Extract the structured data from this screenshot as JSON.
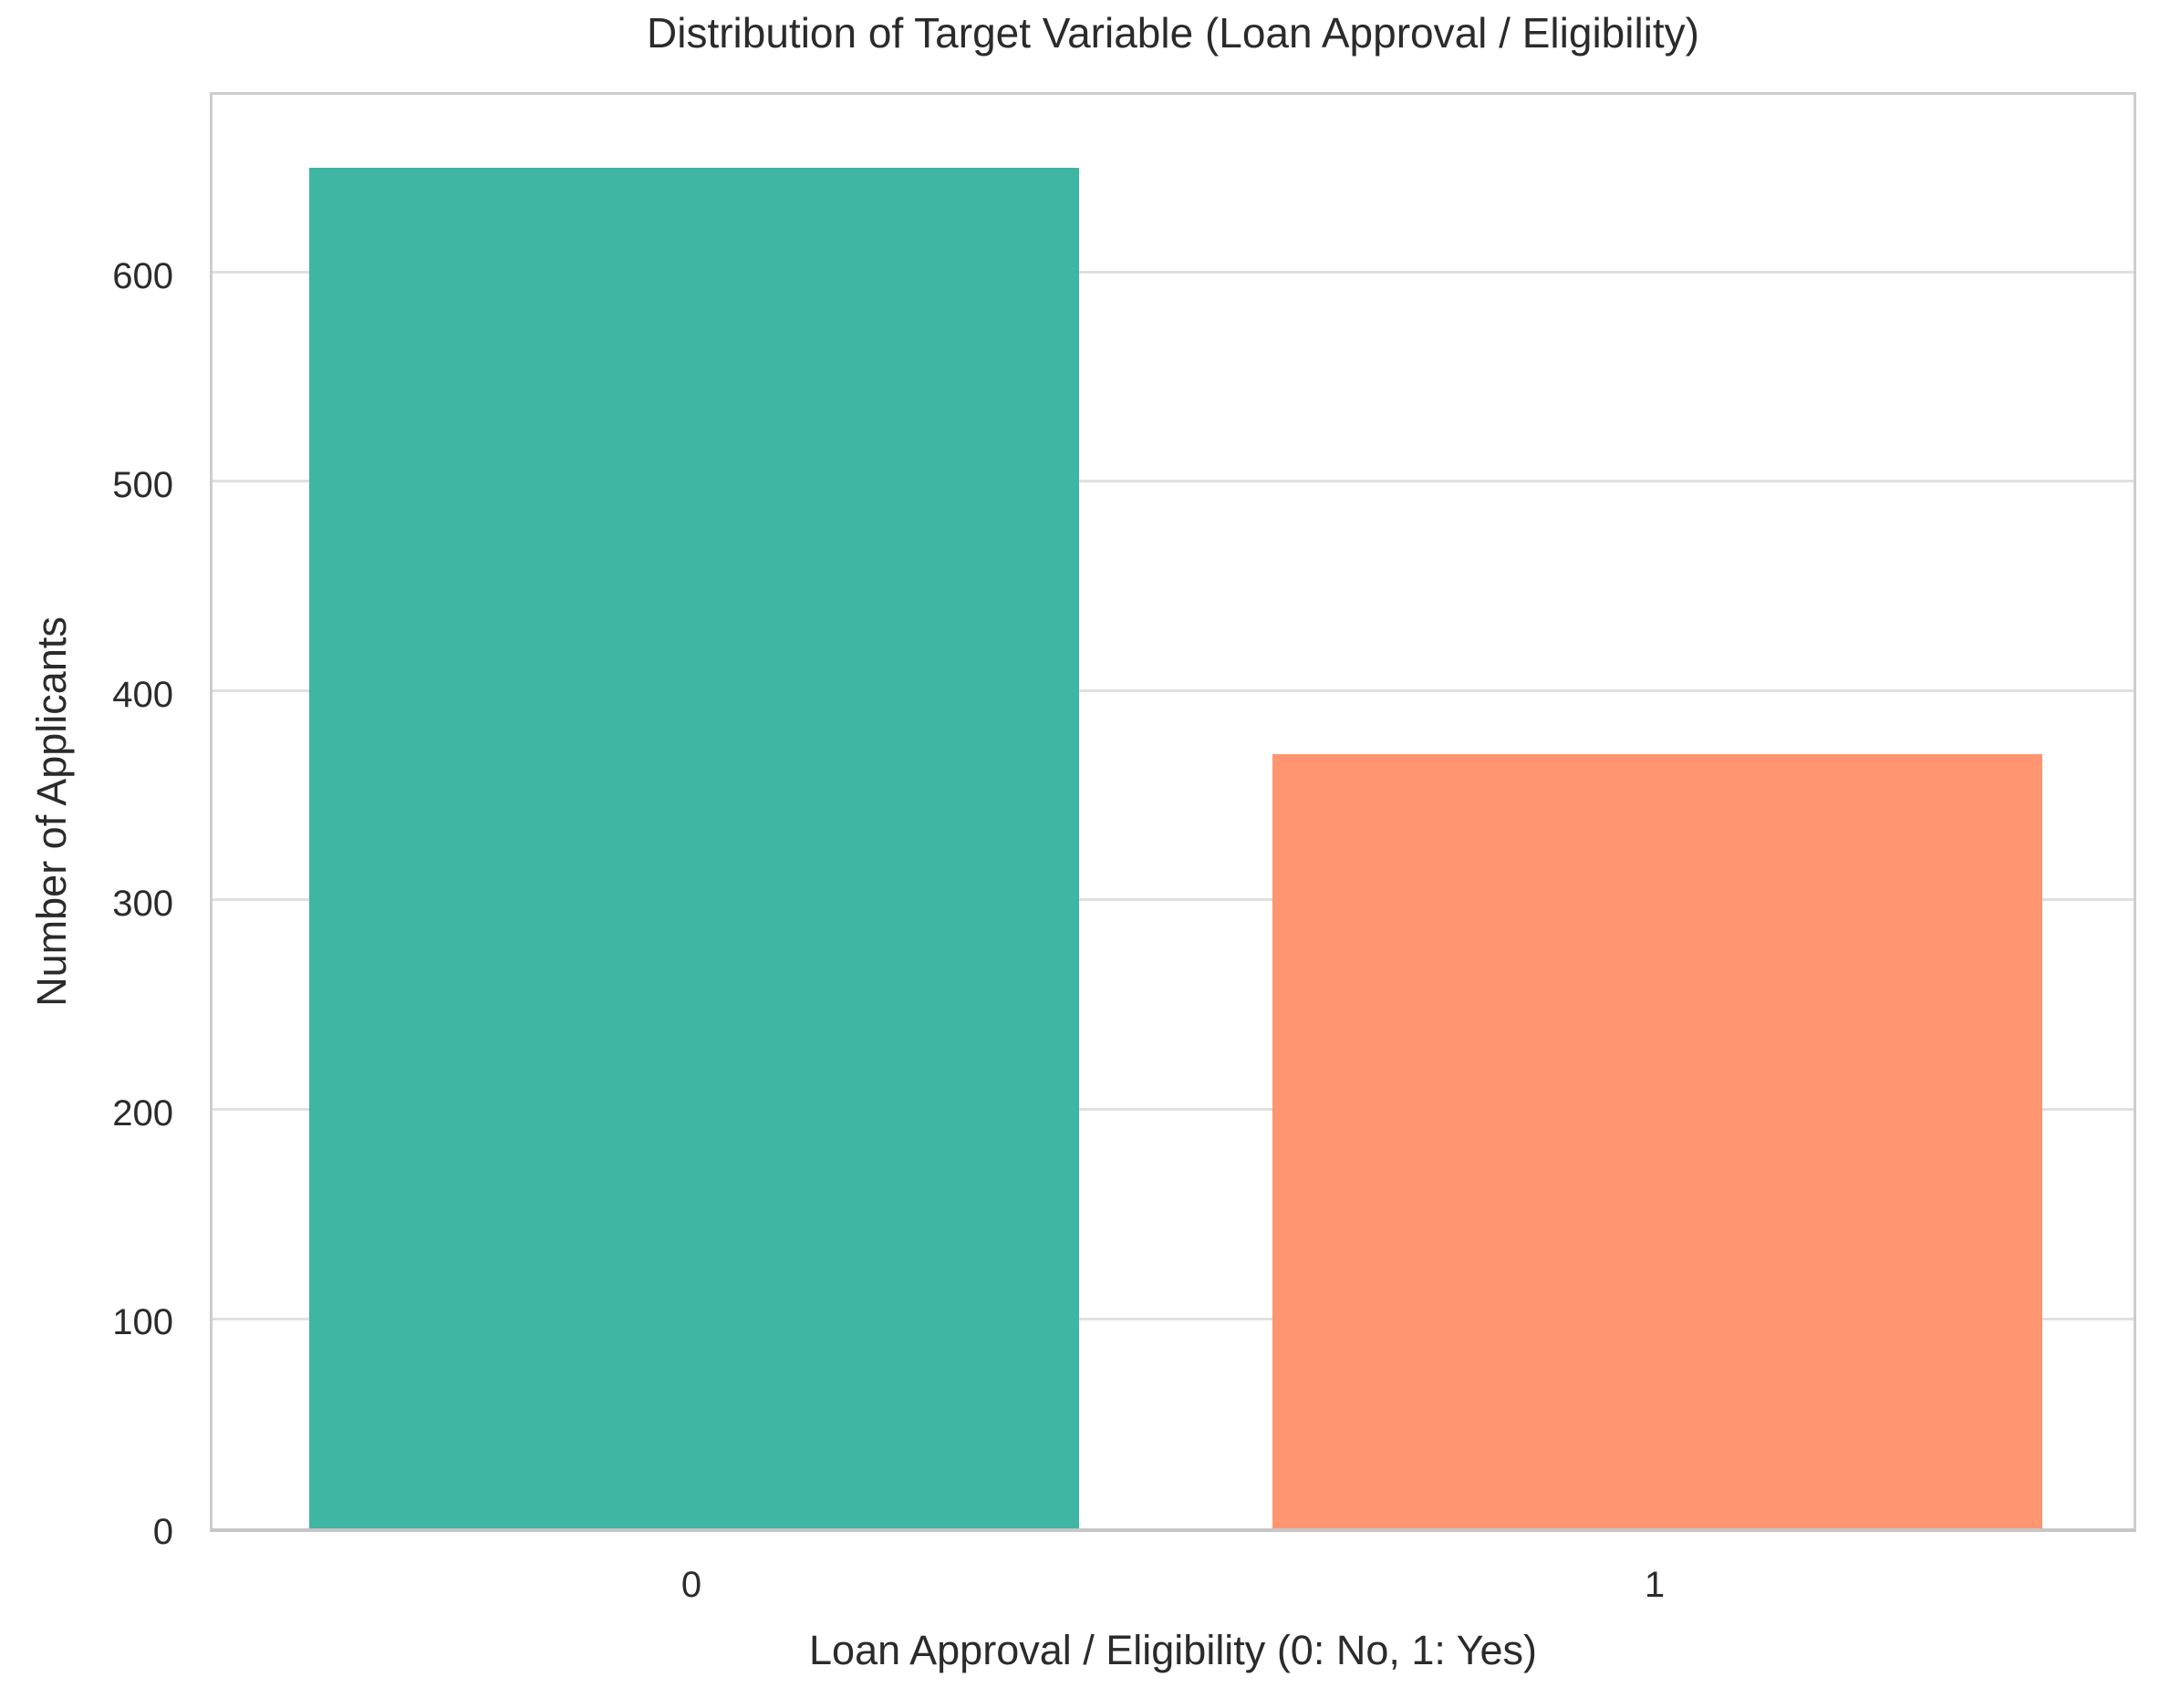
{
  "chart_data": {
    "type": "bar",
    "title": "Distribution of Target Variable (Loan Approval / Eligibility)",
    "xlabel": "Loan Approval / Eligibility (0: No, 1: Yes)",
    "ylabel": "Number of Applicants",
    "categories": [
      "0",
      "1"
    ],
    "values": [
      650,
      370
    ],
    "bar_colors": [
      "#3fb5a3",
      "#ff9671"
    ],
    "yticks": [
      0,
      100,
      200,
      300,
      400,
      500,
      600
    ],
    "ylim": [
      0,
      688
    ],
    "bar_width_fraction": 0.8,
    "grid": "horizontal-on",
    "legend": "none",
    "colors": {
      "background": "#ffffff",
      "grid_color": "#e0e0e0",
      "axis_border_color": "#cdcdcd",
      "text_color": "#2b2b2b"
    }
  }
}
